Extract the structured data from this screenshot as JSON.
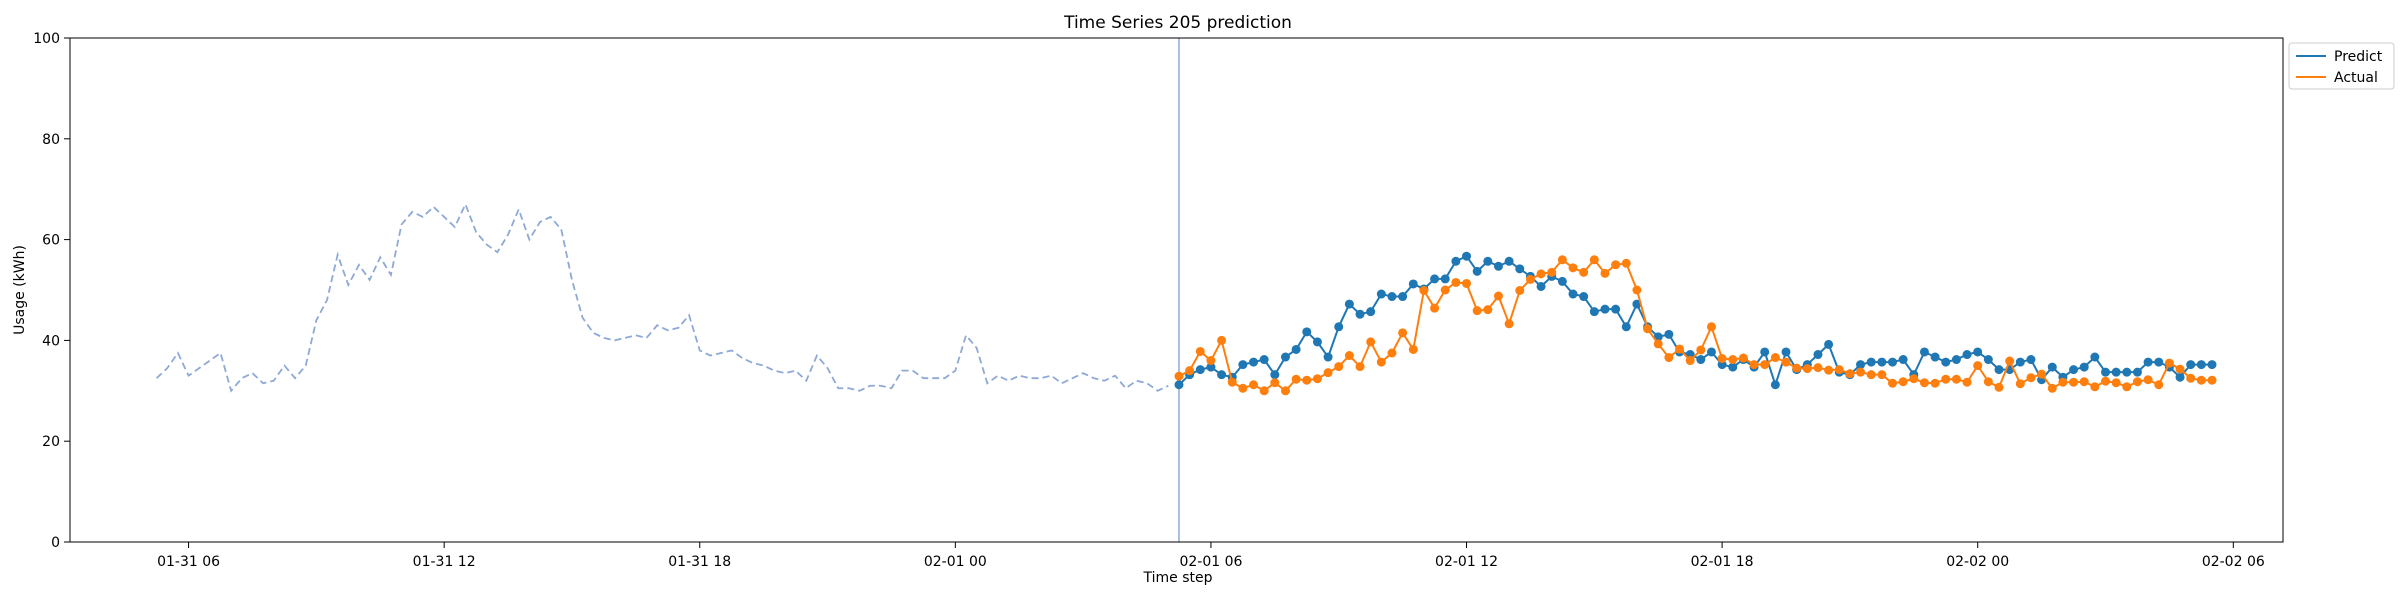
{
  "chart_data": {
    "type": "line",
    "title": "Time Series 205 prediction",
    "xlabel": "Time step",
    "ylabel": "Usage (kWh)",
    "ylim": [
      0,
      100
    ],
    "xlim": [
      "2022-01-31T03:13",
      "2022-02-02T07:10"
    ],
    "yticks": [
      0,
      20,
      40,
      60,
      80,
      100
    ],
    "xticks": [
      {
        "t": "2022-01-31T06:00",
        "label": "01-31 06"
      },
      {
        "t": "2022-01-31T12:00",
        "label": "01-31 12"
      },
      {
        "t": "2022-01-31T18:00",
        "label": "01-31 18"
      },
      {
        "t": "2022-02-01T00:00",
        "label": "02-01 00"
      },
      {
        "t": "2022-02-01T06:00",
        "label": "02-01 06"
      },
      {
        "t": "2022-02-01T12:00",
        "label": "02-01 12"
      },
      {
        "t": "2022-02-01T18:00",
        "label": "02-01 18"
      },
      {
        "t": "2022-02-02T00:00",
        "label": "02-02 00"
      },
      {
        "t": "2022-02-02T06:00",
        "label": "02-02 06"
      }
    ],
    "grid": false,
    "legend_position": "outside top-right",
    "forecast_start": "2022-02-01T05:15",
    "history_color": "#8ea9d6",
    "forecast_line_color": "#8ea9d6",
    "history": {
      "start": "2022-01-31T05:15",
      "interval_minutes": 15,
      "values": [
        32.5,
        34.5,
        37.5,
        33.0,
        34.5,
        36.0,
        37.5,
        30.0,
        32.5,
        33.5,
        31.5,
        32.0,
        35.0,
        32.5,
        35.0,
        44.0,
        48.0,
        57.0,
        51.0,
        55.0,
        52.0,
        56.5,
        53.0,
        63.0,
        65.5,
        64.5,
        66.5,
        64.5,
        62.5,
        67.0,
        61.5,
        59.0,
        57.5,
        61.0,
        66.0,
        60.0,
        63.5,
        64.5,
        62.0,
        52.0,
        44.5,
        41.5,
        40.5,
        40.0,
        40.5,
        41.0,
        40.5,
        43.0,
        42.0,
        42.5,
        45.0,
        38.0,
        37.0,
        37.5,
        38.0,
        36.5,
        35.5,
        35.0,
        34.0,
        33.5,
        34.0,
        32.0,
        37.0,
        34.5,
        30.5,
        30.5,
        30.0,
        31.0,
        31.0,
        30.5,
        34.0,
        34.0,
        32.5,
        32.5,
        32.5,
        34.0,
        41.0,
        38.5,
        31.5,
        33.0,
        32.0,
        33.0,
        32.5,
        32.5,
        33.0,
        31.5,
        32.5,
        33.5,
        32.5,
        32.0,
        33.0,
        30.5,
        32.0,
        31.5,
        30.0,
        31.0
      ]
    },
    "series": [
      {
        "name": "Predict",
        "color": "#1f77b4",
        "start": "2022-02-01T05:15",
        "interval_minutes": 15,
        "values": [
          31.2,
          33.2,
          34.2,
          34.7,
          33.2,
          32.7,
          35.2,
          35.7,
          36.2,
          33.2,
          36.7,
          38.2,
          41.7,
          39.7,
          36.7,
          42.7,
          47.2,
          45.2,
          45.7,
          49.2,
          48.7,
          48.7,
          51.2,
          50.2,
          52.2,
          52.2,
          55.7,
          56.7,
          53.7,
          55.7,
          54.7,
          55.7,
          54.2,
          52.7,
          50.7,
          52.7,
          51.7,
          49.2,
          48.7,
          45.7,
          46.2,
          46.2,
          42.7,
          47.2,
          42.7,
          40.7,
          41.2,
          37.7,
          37.2,
          36.2,
          37.7,
          35.2,
          34.7,
          36.2,
          34.7,
          37.7,
          31.2,
          37.7,
          34.2,
          35.2,
          37.2,
          39.2,
          33.7,
          33.2,
          35.2,
          35.7,
          35.7,
          35.7,
          36.2,
          33.2,
          37.7,
          36.7,
          35.7,
          36.2,
          37.2,
          37.7,
          36.2,
          34.2,
          34.2,
          35.7,
          36.2,
          32.2,
          34.7,
          32.7,
          34.2,
          34.7,
          36.7,
          33.7,
          33.7,
          33.7,
          33.7,
          35.7,
          35.7,
          34.7,
          32.7,
          35.2,
          35.2,
          35.2
        ]
      },
      {
        "name": "Actual",
        "color": "#ff7f0e",
        "start": "2022-02-01T05:15",
        "interval_minutes": 15,
        "values": [
          32.9,
          34.0,
          37.8,
          36.0,
          40.0,
          31.7,
          30.5,
          31.2,
          30.0,
          31.6,
          30.0,
          32.3,
          32.1,
          32.4,
          33.6,
          34.8,
          37.0,
          34.8,
          39.7,
          35.7,
          37.5,
          41.5,
          38.2,
          49.9,
          46.4,
          50.0,
          51.5,
          51.3,
          45.9,
          46.1,
          48.8,
          43.3,
          49.9,
          52.1,
          53.2,
          53.5,
          56.0,
          54.4,
          53.5,
          56.0,
          53.3,
          55.0,
          55.3,
          50.0,
          42.3,
          39.3,
          36.6,
          38.3,
          36.0,
          38.1,
          42.7,
          36.4,
          36.2,
          36.5,
          35.2,
          35.2,
          36.6,
          35.7,
          34.5,
          34.4,
          34.6,
          34.1,
          34.2,
          33.4,
          33.7,
          33.2,
          33.2,
          31.5,
          31.8,
          32.4,
          31.6,
          31.5,
          32.3,
          32.3,
          31.7,
          35.0,
          31.8,
          30.7,
          35.9,
          31.4,
          32.6,
          33.3,
          30.5,
          31.7,
          31.7,
          31.8,
          30.8,
          31.9,
          31.6,
          30.8,
          31.8,
          32.2,
          31.2,
          35.5,
          34.3,
          32.5,
          32.1,
          32.1
        ]
      }
    ]
  }
}
